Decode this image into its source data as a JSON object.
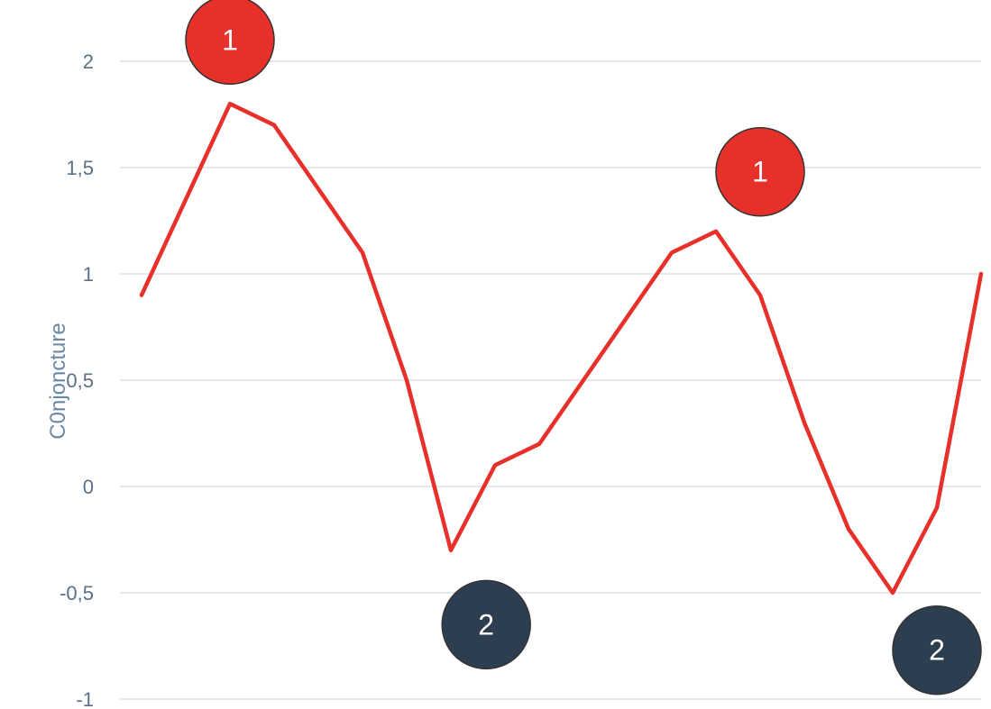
{
  "chart_data": {
    "type": "line",
    "ylabel": "C0njoncture",
    "ylim": [
      -1,
      2
    ],
    "yticks": [
      {
        "value": 2,
        "label": "2"
      },
      {
        "value": 1.5,
        "label": "1,5"
      },
      {
        "value": 1,
        "label": "1"
      },
      {
        "value": 0.5,
        "label": "0,5"
      },
      {
        "value": 0,
        "label": "0"
      },
      {
        "value": -0.5,
        "label": "-0,5"
      },
      {
        "value": -1,
        "label": "-1"
      }
    ],
    "grid": true,
    "series": [
      {
        "color": "#e8302a",
        "values": [
          0.9,
          1.35,
          1.8,
          1.7,
          1.4,
          1.1,
          0.5,
          -0.3,
          0.1,
          0.2,
          0.5,
          0.8,
          1.1,
          1.2,
          0.9,
          0.3,
          -0.2,
          -0.5,
          -0.1,
          1.0
        ]
      }
    ],
    "annotations": [
      {
        "label": "1",
        "index": 2,
        "value": 2.1,
        "color": "#e8302a"
      },
      {
        "label": "1",
        "index": 14,
        "value": 1.48,
        "color": "#e8302a"
      },
      {
        "label": "2",
        "index": 7.8,
        "value": -0.65,
        "color": "#2c3e50"
      },
      {
        "label": "2",
        "index": 18,
        "value": -0.77,
        "color": "#2c3e50"
      }
    ]
  },
  "colors": {
    "grid": "#d9e1e8",
    "line": "#e8302a",
    "marker_1": "#e8302a",
    "marker_2": "#2c3e50",
    "marker_stroke": "#333333"
  }
}
